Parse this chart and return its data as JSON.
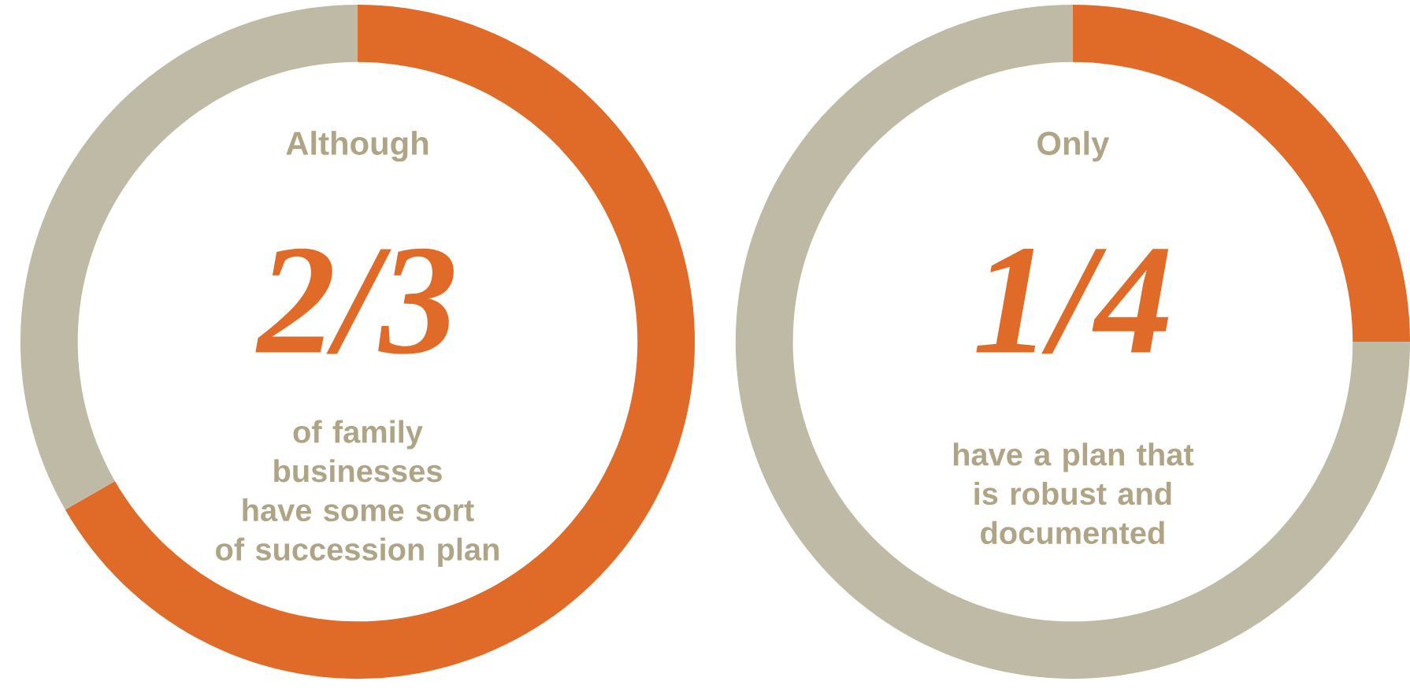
{
  "chart_data": [
    {
      "type": "donut",
      "title": "Although",
      "categories": [
        null,
        null
      ],
      "values": [
        66.7,
        33.3
      ],
      "colors": [
        "#e06a28",
        "#bfbaa6"
      ],
      "annotations": [
        "2/3",
        "of family businesses have some sort of succession plan"
      ]
    },
    {
      "type": "donut",
      "title": "Only",
      "categories": [
        null,
        null
      ],
      "values": [
        25,
        75
      ],
      "colors": [
        "#e06a28",
        "#bfbaa6"
      ],
      "annotations": [
        "1/4",
        "have a plan that is robust and documented"
      ]
    }
  ]
}
